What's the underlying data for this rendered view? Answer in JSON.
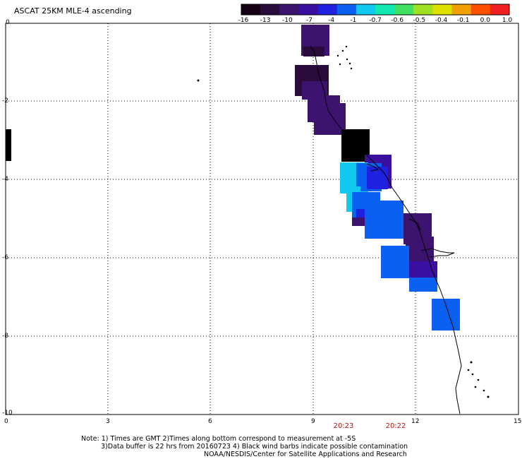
{
  "title": "ASCAT 25KM MLE-4 ascending",
  "colorbar": {
    "ticks": [
      "-16",
      "-13",
      "-10",
      "-7",
      "-4",
      "-1",
      "-0.7",
      "-0.6",
      "-0.5",
      "-0.4",
      "-0.1",
      "0.0",
      "1.0"
    ],
    "colors": [
      "#160016",
      "#2a0c3c",
      "#3c1470",
      "#3a10a0",
      "#2020e0",
      "#0a60f0",
      "#10c8f0",
      "#10e8b0",
      "#40e060",
      "#a0e020",
      "#e0e000",
      "#f0a000",
      "#ff5000",
      "#f02020"
    ]
  },
  "axes": {
    "x_ticks": [
      "0",
      "3",
      "6",
      "9",
      "12",
      "15"
    ],
    "y_ticks": [
      "0",
      "-2",
      "-4",
      "-6",
      "-8",
      "-10"
    ]
  },
  "times": [
    "20:23",
    "20:22"
  ],
  "notes": {
    "line1": "Note: 1) Times are GMT 2)Times along bottom correspond to measurement at -5S",
    "line2": "3)Data buffer is 22 hrs from 20160723 4) Black wind barbs indicate possible contamination",
    "line3": "NOAA/NESDIS/Center for Satellite Applications and Research"
  }
}
